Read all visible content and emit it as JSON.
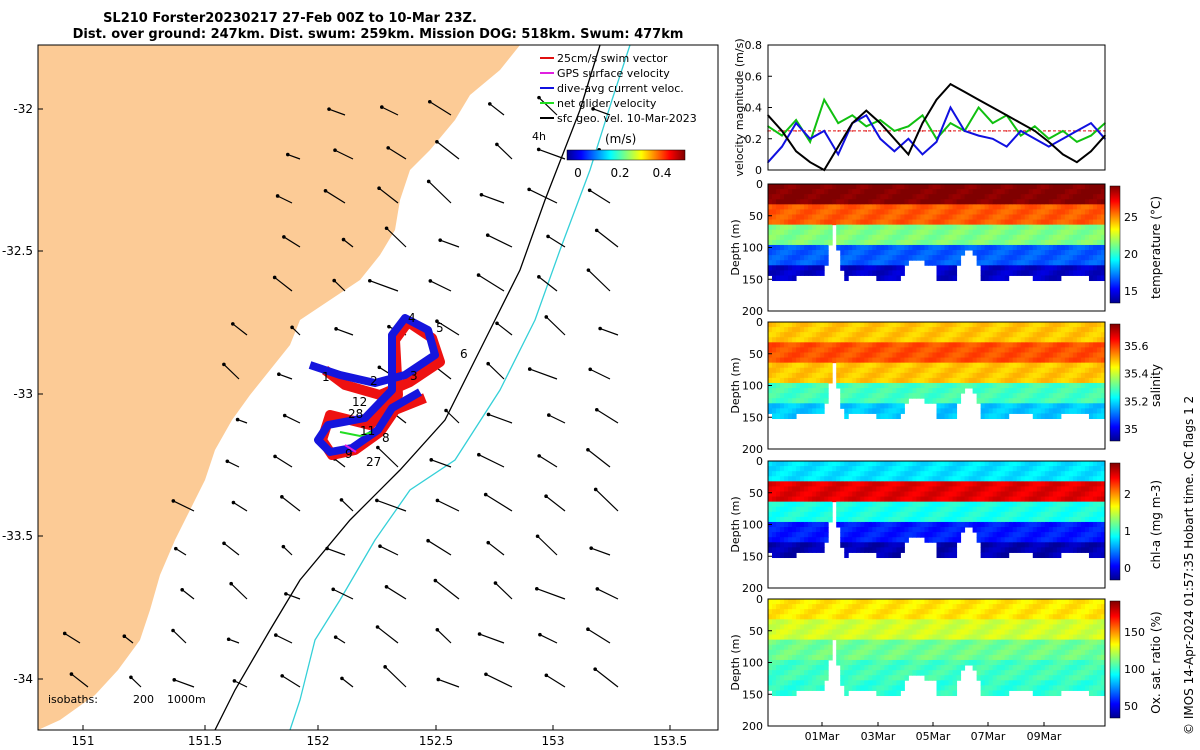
{
  "title_line1": "SL210 Forster20230217 27-Feb 00Z to 10-Mar 23Z.",
  "title_line2": "Dist. over ground: 247km. Dist. swum: 259km. Mission DOG: 518km. Swum: 477km",
  "footer": "© IMOS 14-Apr-2024 01:57:35 Hobart time. QC flags 1  2",
  "map": {
    "x_ticks": [
      "151",
      "151.5",
      "152",
      "152.5",
      "153",
      "153.5"
    ],
    "y_ticks": [
      "-32",
      "-32.5",
      "-33",
      "-33.5",
      "-34"
    ],
    "legend": [
      {
        "label": "25cm/s swim vector",
        "color": "#e01010"
      },
      {
        "label": "GPS surface velocity",
        "color": "#e020e0"
      },
      {
        "label": "dive-avg current veloc.",
        "color": "#1010e0"
      },
      {
        "label": "net glider velocity",
        "color": "#20e020"
      },
      {
        "label": "sfc geo. vel. 10-Mar-2023",
        "color": "#000000"
      }
    ],
    "colorbar_label": "(m/s)",
    "colorbar_ticks": [
      "0",
      "0.2",
      "0.4"
    ],
    "interval_label": "4h",
    "isobaths_label": "isobaths:",
    "isobath_values": [
      "200",
      "1000m"
    ],
    "day_labels": [
      "1",
      "2",
      "3",
      "4",
      "5",
      "6",
      "12",
      "28",
      "11",
      "8",
      "9",
      "27"
    ],
    "land_color": "#fccb96"
  },
  "chart_data": [
    {
      "type": "line",
      "ylabel": "velocity magnitude (m/s)",
      "ylim": [
        0,
        0.8
      ],
      "y_ticks": [
        "0",
        "0.2",
        "0.4",
        "0.6",
        "0.8"
      ],
      "x": [
        0,
        0.5,
        1,
        1.5,
        2,
        2.5,
        3,
        3.5,
        4,
        4.5,
        5,
        5.5,
        6,
        6.5,
        7,
        7.5,
        8,
        8.5,
        9,
        9.5,
        10,
        10.5,
        11,
        11.5,
        12
      ],
      "series": [
        {
          "color": "#e01010",
          "values": [
            0.25,
            0.25,
            0.25,
            0.25,
            0.25,
            0.25,
            0.25,
            0.25,
            0.25,
            0.25,
            0.25,
            0.25,
            0.25,
            0.25,
            0.25,
            0.25,
            0.25,
            0.25,
            0.25,
            0.25,
            0.25,
            0.25,
            0.25,
            0.25,
            0.25
          ]
        },
        {
          "color": "#10c010",
          "values": [
            0.28,
            0.22,
            0.32,
            0.18,
            0.45,
            0.3,
            0.35,
            0.28,
            0.32,
            0.25,
            0.28,
            0.35,
            0.2,
            0.3,
            0.25,
            0.4,
            0.3,
            0.35,
            0.22,
            0.28,
            0.2,
            0.25,
            0.18,
            0.22,
            0.3
          ]
        },
        {
          "color": "#1010e0",
          "values": [
            0.05,
            0.15,
            0.3,
            0.2,
            0.25,
            0.1,
            0.3,
            0.35,
            0.2,
            0.12,
            0.2,
            0.1,
            0.18,
            0.4,
            0.25,
            0.22,
            0.2,
            0.15,
            0.25,
            0.2,
            0.15,
            0.2,
            0.25,
            0.3,
            0.2
          ]
        },
        {
          "color": "#000000",
          "values": [
            0.35,
            0.25,
            0.12,
            0.05,
            0.0,
            0.15,
            0.3,
            0.38,
            0.3,
            0.2,
            0.1,
            0.3,
            0.45,
            0.55,
            0.5,
            0.45,
            0.4,
            0.35,
            0.3,
            0.25,
            0.18,
            0.1,
            0.05,
            0.12,
            0.22
          ]
        }
      ]
    },
    {
      "type": "heatmap",
      "ylabel": "Depth (m)",
      "ylim": [
        200,
        0
      ],
      "y_ticks": [
        "0",
        "50",
        "100",
        "150",
        "200"
      ],
      "colorbar_label": "temperature (°C)",
      "colorbar_ticks": [
        "15",
        "20",
        "25"
      ],
      "range": [
        13,
        27
      ],
      "profile": [
        27,
        24,
        20,
        16,
        14
      ]
    },
    {
      "type": "heatmap",
      "ylabel": "Depth (m)",
      "ylim": [
        200,
        0
      ],
      "y_ticks": [
        "0",
        "50",
        "100",
        "150",
        "200"
      ],
      "colorbar_label": "salinity",
      "colorbar_ticks": [
        "35",
        "35.2",
        "35.4",
        "35.6"
      ],
      "range": [
        34.88,
        35.72
      ],
      "profile": [
        35.45,
        35.55,
        35.45,
        35.25,
        35.15
      ]
    },
    {
      "type": "heatmap",
      "ylabel": "Depth (m)",
      "ylim": [
        200,
        0
      ],
      "y_ticks": [
        "0",
        "50",
        "100",
        "150",
        "200"
      ],
      "colorbar_label": "chl-a (mg m-3)",
      "colorbar_ticks": [
        "0",
        "1",
        "2"
      ],
      "range": [
        0,
        2
      ],
      "profile": [
        0.7,
        1.8,
        0.8,
        0.3,
        0.1
      ]
    },
    {
      "type": "heatmap",
      "ylabel": "Depth (m)",
      "ylim": [
        200,
        0
      ],
      "y_ticks": [
        "0",
        "50",
        "100",
        "150",
        "200"
      ],
      "colorbar_label": "Ox. sat. ratio (%)",
      "colorbar_ticks": [
        "50",
        "100",
        "150"
      ],
      "range": [
        20,
        175
      ],
      "profile": [
        120,
        110,
        95,
        88,
        85
      ],
      "x_ticks": [
        "01Mar",
        "03Mar",
        "05Mar",
        "07Mar",
        "09Mar"
      ]
    }
  ]
}
